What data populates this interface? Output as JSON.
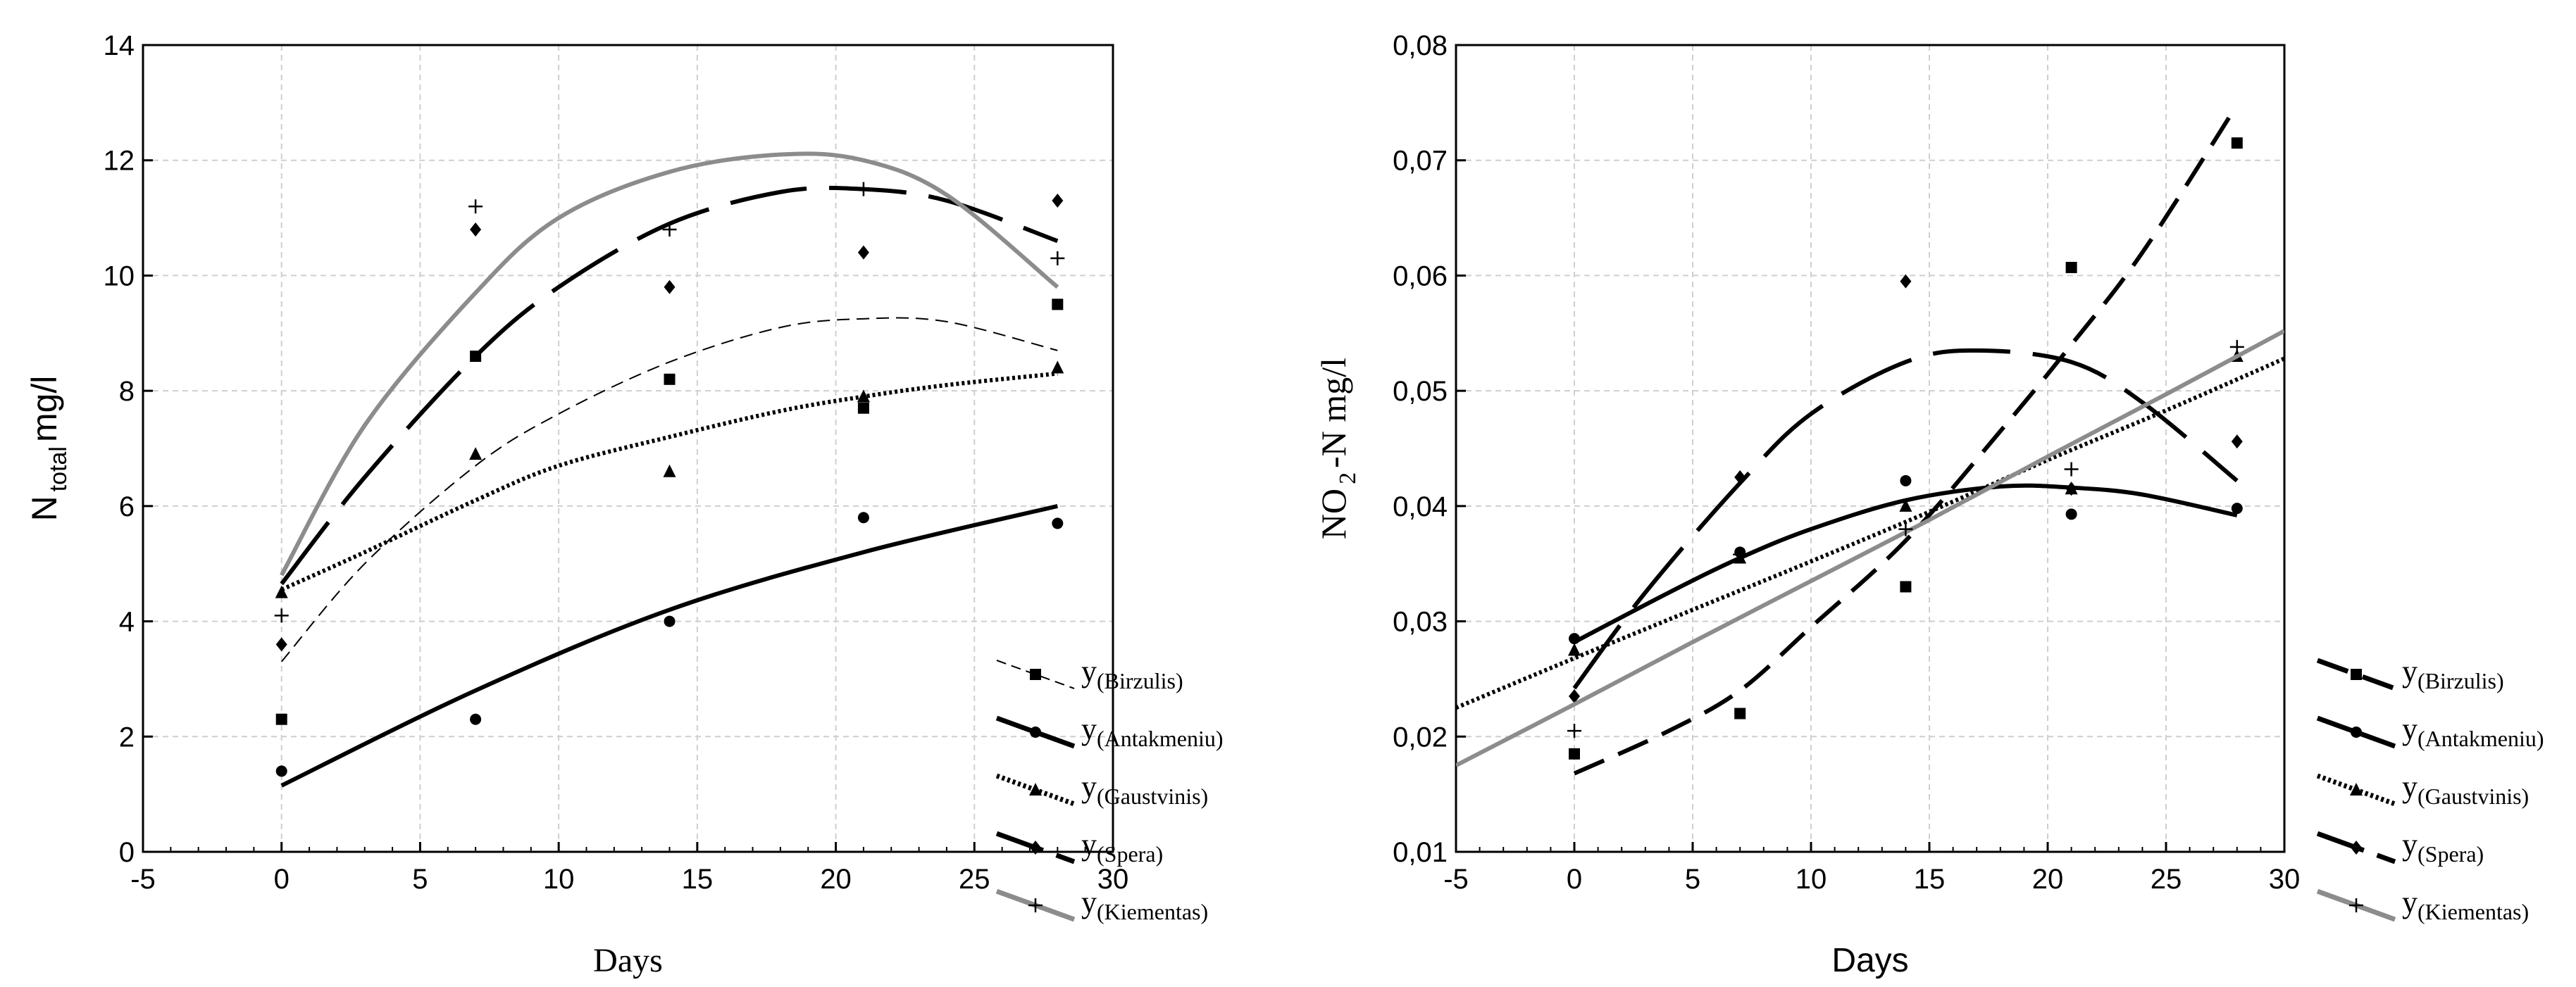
{
  "chart_data": [
    {
      "type": "line",
      "xlabel": "Days",
      "ylabel": "N total mg/l",
      "ylabel_main": "N",
      "ylabel_sub": "total",
      "ylabel_unit": "mg/l",
      "xlim": [
        -5,
        30
      ],
      "ylim": [
        0,
        14
      ],
      "xticks": [
        -5,
        0,
        5,
        10,
        15,
        20,
        25,
        30
      ],
      "yticks": [
        0,
        2,
        4,
        6,
        8,
        10,
        12,
        14
      ],
      "xtick_labels": [
        "-5",
        "0",
        "5",
        "10",
        "15",
        "20",
        "25",
        "30"
      ],
      "ytick_labels": [
        "0",
        "2",
        "4",
        "6",
        "8",
        "10",
        "12",
        "14"
      ],
      "grid": true,
      "legend_position": "right-bottom",
      "series": [
        {
          "name": "y",
          "sub": "(Birzulis)",
          "style": "thin-dash",
          "marker": "square",
          "color": "#000000",
          "x": [
            0,
            7,
            14,
            21,
            28
          ],
          "y": [
            2.3,
            8.6,
            8.2,
            7.7,
            9.5
          ],
          "fit_x": [
            0,
            3,
            7,
            10,
            14,
            18,
            21,
            24,
            28
          ],
          "fit_y": [
            3.3,
            5.0,
            6.7,
            7.6,
            8.5,
            9.1,
            9.25,
            9.2,
            8.7
          ]
        },
        {
          "name": "y",
          "sub": "(Antakmeniu)",
          "style": "solid",
          "marker": "circle",
          "color": "#000000",
          "x": [
            0,
            7,
            14,
            21,
            28
          ],
          "y": [
            1.4,
            2.3,
            4.0,
            5.8,
            5.7
          ],
          "fit_x": [
            0,
            7,
            14,
            21,
            28
          ],
          "fit_y": [
            1.15,
            2.8,
            4.2,
            5.2,
            6.0
          ]
        },
        {
          "name": "y",
          "sub": "(Gaustvinis)",
          "style": "dotted",
          "marker": "triangle",
          "color": "#000000",
          "x": [
            0,
            7,
            14,
            21,
            28
          ],
          "y": [
            4.5,
            6.9,
            6.6,
            7.9,
            8.4
          ],
          "fit_x": [
            0,
            3,
            7,
            10,
            14,
            18,
            21,
            24,
            28
          ],
          "fit_y": [
            4.55,
            5.2,
            6.1,
            6.7,
            7.2,
            7.65,
            7.9,
            8.1,
            8.3
          ]
        },
        {
          "name": "y",
          "sub": "(Spera)",
          "style": "long-dash",
          "marker": "diamond",
          "color": "#000000",
          "x": [
            0,
            7,
            14,
            21,
            28
          ],
          "y": [
            3.6,
            10.8,
            9.8,
            10.4,
            11.3
          ],
          "fit_x": [
            0,
            3,
            7,
            10,
            14,
            18,
            21,
            24,
            28
          ],
          "fit_y": [
            4.65,
            6.5,
            8.6,
            9.8,
            10.9,
            11.45,
            11.5,
            11.3,
            10.6
          ]
        },
        {
          "name": "y",
          "sub": "(Kiementas)",
          "style": "gray-solid",
          "marker": "plus",
          "color": "#8c8c8c",
          "x": [
            0,
            7,
            14,
            21,
            28
          ],
          "y": [
            4.1,
            11.2,
            10.8,
            11.5,
            10.3
          ],
          "fit_x": [
            0,
            3,
            7,
            10,
            14,
            18,
            21,
            24,
            28
          ],
          "fit_y": [
            4.8,
            7.4,
            9.7,
            11.0,
            11.8,
            12.1,
            12.0,
            11.4,
            9.8
          ]
        }
      ]
    },
    {
      "type": "line",
      "xlabel": "Days",
      "ylabel": "NO2-N mg/l",
      "ylabel_main": "NO",
      "ylabel_sub": "2",
      "ylabel_unit": "-N mg/l",
      "xlim": [
        -5,
        30
      ],
      "ylim": [
        0.01,
        0.08
      ],
      "xticks": [
        -5,
        0,
        5,
        10,
        15,
        20,
        25,
        30
      ],
      "yticks": [
        0.01,
        0.02,
        0.03,
        0.04,
        0.05,
        0.06,
        0.07,
        0.08
      ],
      "xtick_labels": [
        "-5",
        "0",
        "5",
        "10",
        "15",
        "20",
        "25",
        "30"
      ],
      "ytick_labels": [
        "0,01",
        "0,02",
        "0,03",
        "0,04",
        "0,05",
        "0,06",
        "0,07",
        "0,08"
      ],
      "grid": true,
      "legend_position": "right-bottom",
      "series": [
        {
          "name": "y",
          "sub": "(Birzulis)",
          "style": "dash",
          "marker": "square",
          "color": "#000000",
          "x": [
            0,
            7,
            14,
            21,
            28
          ],
          "y": [
            0.0185,
            0.022,
            0.033,
            0.0607,
            0.0715
          ],
          "fit_x": [
            0,
            4,
            7,
            10,
            14,
            18,
            21,
            24,
            28
          ],
          "fit_y": [
            0.0168,
            0.0205,
            0.024,
            0.0295,
            0.037,
            0.0465,
            0.054,
            0.062,
            0.0748
          ]
        },
        {
          "name": "y",
          "sub": "(Antakmeniu)",
          "style": "solid",
          "marker": "circle",
          "color": "#000000",
          "x": [
            0,
            7,
            14,
            21,
            28
          ],
          "y": [
            0.0285,
            0.036,
            0.0422,
            0.0393,
            0.0398
          ],
          "fit_x": [
            0,
            4,
            7,
            10,
            14,
            18,
            21,
            24,
            28
          ],
          "fit_y": [
            0.0282,
            0.0325,
            0.0355,
            0.038,
            0.0405,
            0.0417,
            0.0416,
            0.041,
            0.0392
          ]
        },
        {
          "name": "y",
          "sub": "(Gaustvinis)",
          "style": "dotted",
          "marker": "triangle",
          "color": "#000000",
          "x": [
            0,
            7,
            14,
            21,
            28
          ],
          "y": [
            0.0275,
            0.0355,
            0.04,
            0.0415,
            0.053
          ],
          "fit_x": [
            -5,
            0,
            5,
            10,
            15,
            20,
            25,
            30
          ],
          "fit_y": [
            0.0225,
            0.0268,
            0.031,
            0.0352,
            0.0395,
            0.044,
            0.0483,
            0.0528
          ]
        },
        {
          "name": "y",
          "sub": "(Spera)",
          "style": "long-dash",
          "marker": "diamond",
          "color": "#000000",
          "x": [
            0,
            7,
            14,
            21,
            28
          ],
          "y": [
            0.0235,
            0.0425,
            0.0595,
            0.0415,
            0.0456
          ],
          "fit_x": [
            0,
            3,
            7,
            10,
            14,
            17,
            21,
            24,
            28
          ],
          "fit_y": [
            0.0242,
            0.0325,
            0.042,
            0.048,
            0.0525,
            0.0535,
            0.0525,
            0.049,
            0.0422
          ]
        },
        {
          "name": "y",
          "sub": "(Kiementas)",
          "style": "gray-solid",
          "marker": "plus",
          "color": "#8c8c8c",
          "x": [
            0,
            7,
            14,
            21,
            28
          ],
          "y": [
            0.0205,
            0.0358,
            0.038,
            0.0432,
            0.0538
          ],
          "fit_x": [
            -5,
            0,
            5,
            10,
            15,
            20,
            25,
            30
          ],
          "fit_y": [
            0.0175,
            0.0228,
            0.0282,
            0.0335,
            0.0388,
            0.0443,
            0.0497,
            0.0552
          ]
        }
      ]
    }
  ]
}
